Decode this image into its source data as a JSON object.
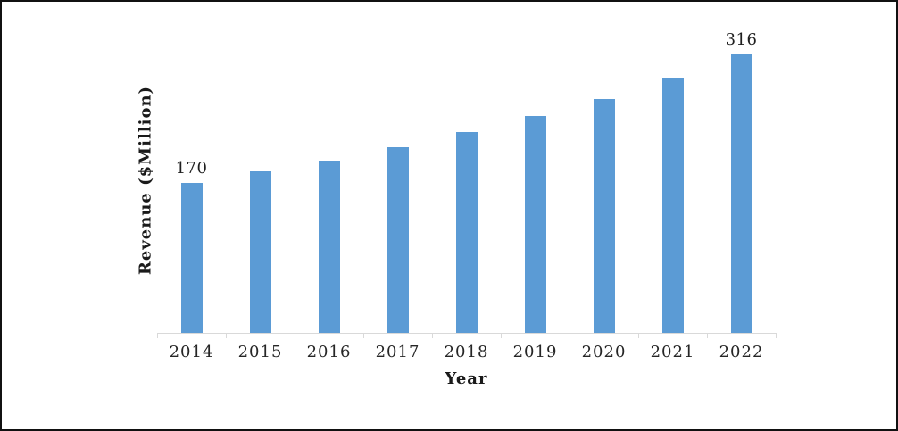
{
  "window": {
    "background_color": "#ffffff",
    "frame_border_color": "#111111"
  },
  "chart_data": {
    "type": "bar",
    "title": "",
    "categories": [
      "2014",
      "2015",
      "2016",
      "2017",
      "2018",
      "2019",
      "2020",
      "2021",
      "2022"
    ],
    "values": [
      170,
      184,
      196,
      211,
      228,
      246,
      266,
      290,
      316
    ],
    "data_labels": [
      "170",
      "",
      "",
      "",
      "",
      "",
      "",
      "",
      "316"
    ],
    "xlabel": "Year",
    "ylabel": "Revenue ($Million)",
    "ylim": [
      0,
      320
    ],
    "grid": false,
    "legend": false,
    "bar_color": "#5B9BD5",
    "axis_line_color": "#D9D9D9",
    "tick_label_color": "#262626",
    "data_label_color": "#1F1F1F"
  }
}
